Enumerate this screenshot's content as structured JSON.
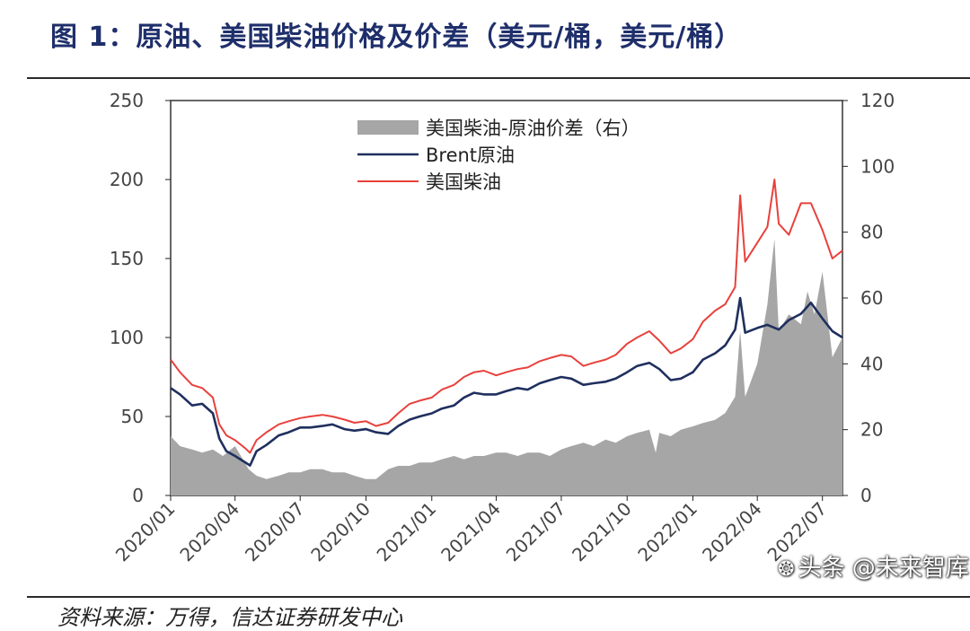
{
  "figure": {
    "title": "图 1：原油、美国柴油价格及价差（美元/桶，美元/桶）",
    "source": "资料来源：万得，信达证券研发中心",
    "watermark": "头条 @未来智库"
  },
  "colors": {
    "spread": "#a6a6a6",
    "brent": "#1f2f5e",
    "diesel": "#e8413c",
    "title": "#1f2f6b",
    "axis": "#222222"
  },
  "chart_data": {
    "type": "line",
    "title": "",
    "xlabel": "",
    "ylabel": "",
    "y2label": "",
    "x_axis": {
      "type": "date",
      "range": [
        "2020-01-02",
        "2022-07-29"
      ],
      "tick_labels": [
        "2020/01",
        "2020/04",
        "2020/07",
        "2020/10",
        "2021/01",
        "2021/04",
        "2021/07",
        "2021/10",
        "2022/01",
        "2022/04",
        "2022/07"
      ]
    },
    "y_left": {
      "range": [
        0,
        250
      ],
      "ticks": [
        0,
        50,
        100,
        150,
        200,
        250
      ]
    },
    "y_right": {
      "range": [
        0,
        120
      ],
      "ticks": [
        0,
        20,
        40,
        60,
        80,
        100,
        120
      ]
    },
    "grid": false,
    "legend_position": "top-center",
    "series": [
      {
        "name": "美国柴油-原油价差（右）",
        "kind": "area",
        "axis": "right",
        "x": [
          "2020-01-02",
          "2020-01-15",
          "2020-02-01",
          "2020-02-15",
          "2020-03-01",
          "2020-03-15",
          "2020-04-01",
          "2020-04-20",
          "2020-05-01",
          "2020-05-15",
          "2020-06-01",
          "2020-06-15",
          "2020-07-01",
          "2020-07-15",
          "2020-08-01",
          "2020-08-15",
          "2020-09-01",
          "2020-09-15",
          "2020-10-01",
          "2020-10-15",
          "2020-11-01",
          "2020-11-15",
          "2020-12-01",
          "2020-12-15",
          "2021-01-01",
          "2021-01-15",
          "2021-02-01",
          "2021-02-15",
          "2021-03-01",
          "2021-03-15",
          "2021-04-01",
          "2021-04-15",
          "2021-05-01",
          "2021-05-15",
          "2021-06-01",
          "2021-06-15",
          "2021-07-01",
          "2021-07-15",
          "2021-08-01",
          "2021-08-15",
          "2021-09-01",
          "2021-09-15",
          "2021-10-01",
          "2021-10-15",
          "2021-11-01",
          "2021-11-10",
          "2021-11-15",
          "2021-12-01",
          "2021-12-15",
          "2022-01-01",
          "2022-01-15",
          "2022-02-01",
          "2022-02-15",
          "2022-03-01",
          "2022-03-08",
          "2022-03-15",
          "2022-04-01",
          "2022-04-15",
          "2022-04-25",
          "2022-05-01",
          "2022-05-15",
          "2022-06-01",
          "2022-06-10",
          "2022-06-20",
          "2022-07-01",
          "2022-07-15",
          "2022-07-29"
        ],
        "values": [
          18,
          15,
          14,
          13,
          14,
          12,
          15,
          8,
          6,
          5,
          6,
          7,
          7,
          8,
          8,
          7,
          7,
          6,
          5,
          5,
          8,
          9,
          9,
          10,
          10,
          11,
          12,
          11,
          12,
          12,
          13,
          13,
          12,
          13,
          13,
          12,
          14,
          15,
          16,
          15,
          17,
          16,
          18,
          19,
          20,
          13,
          19,
          18,
          20,
          21,
          22,
          23,
          25,
          30,
          50,
          30,
          40,
          58,
          78,
          50,
          55,
          52,
          62,
          55,
          68,
          42,
          48
        ]
      },
      {
        "name": "Brent原油",
        "kind": "line",
        "axis": "left",
        "x": [
          "2020-01-02",
          "2020-01-15",
          "2020-02-01",
          "2020-02-15",
          "2020-03-01",
          "2020-03-10",
          "2020-03-20",
          "2020-04-01",
          "2020-04-15",
          "2020-04-22",
          "2020-05-01",
          "2020-05-15",
          "2020-06-01",
          "2020-06-15",
          "2020-07-01",
          "2020-07-15",
          "2020-08-01",
          "2020-08-15",
          "2020-09-01",
          "2020-09-15",
          "2020-10-01",
          "2020-10-15",
          "2020-11-01",
          "2020-11-15",
          "2020-12-01",
          "2020-12-15",
          "2021-01-01",
          "2021-01-15",
          "2021-02-01",
          "2021-02-15",
          "2021-03-01",
          "2021-03-15",
          "2021-04-01",
          "2021-04-15",
          "2021-05-01",
          "2021-05-15",
          "2021-06-01",
          "2021-06-15",
          "2021-07-01",
          "2021-07-15",
          "2021-08-01",
          "2021-08-15",
          "2021-09-01",
          "2021-09-15",
          "2021-10-01",
          "2021-10-15",
          "2021-11-01",
          "2021-11-15",
          "2021-12-01",
          "2021-12-15",
          "2022-01-01",
          "2022-01-15",
          "2022-02-01",
          "2022-02-15",
          "2022-03-01",
          "2022-03-08",
          "2022-03-15",
          "2022-04-01",
          "2022-04-15",
          "2022-05-01",
          "2022-05-15",
          "2022-06-01",
          "2022-06-15",
          "2022-07-01",
          "2022-07-15",
          "2022-07-29"
        ],
        "values": [
          68,
          64,
          57,
          58,
          52,
          36,
          28,
          25,
          21,
          19,
          28,
          32,
          38,
          40,
          43,
          43,
          44,
          45,
          42,
          41,
          42,
          40,
          39,
          44,
          48,
          50,
          52,
          55,
          57,
          62,
          65,
          64,
          64,
          66,
          68,
          67,
          71,
          73,
          75,
          74,
          70,
          71,
          72,
          74,
          78,
          82,
          84,
          80,
          73,
          74,
          78,
          86,
          90,
          95,
          105,
          125,
          103,
          106,
          108,
          105,
          111,
          115,
          122,
          112,
          104,
          100
        ]
      },
      {
        "name": "美国柴油",
        "kind": "line",
        "axis": "left",
        "x": [
          "2020-01-02",
          "2020-01-15",
          "2020-02-01",
          "2020-02-15",
          "2020-03-01",
          "2020-03-10",
          "2020-03-20",
          "2020-04-01",
          "2020-04-15",
          "2020-04-22",
          "2020-05-01",
          "2020-05-15",
          "2020-06-01",
          "2020-06-15",
          "2020-07-01",
          "2020-07-15",
          "2020-08-01",
          "2020-08-15",
          "2020-09-01",
          "2020-09-15",
          "2020-10-01",
          "2020-10-15",
          "2020-11-01",
          "2020-11-15",
          "2020-12-01",
          "2020-12-15",
          "2021-01-01",
          "2021-01-15",
          "2021-02-01",
          "2021-02-15",
          "2021-03-01",
          "2021-03-15",
          "2021-04-01",
          "2021-04-15",
          "2021-05-01",
          "2021-05-15",
          "2021-06-01",
          "2021-06-15",
          "2021-07-01",
          "2021-07-15",
          "2021-08-01",
          "2021-08-15",
          "2021-09-01",
          "2021-09-15",
          "2021-10-01",
          "2021-10-15",
          "2021-11-01",
          "2021-11-15",
          "2021-12-01",
          "2021-12-15",
          "2022-01-01",
          "2022-01-15",
          "2022-02-01",
          "2022-02-15",
          "2022-03-01",
          "2022-03-08",
          "2022-03-15",
          "2022-04-01",
          "2022-04-15",
          "2022-04-25",
          "2022-05-01",
          "2022-05-15",
          "2022-06-01",
          "2022-06-15",
          "2022-07-01",
          "2022-07-15",
          "2022-07-29"
        ],
        "values": [
          86,
          78,
          70,
          68,
          62,
          45,
          38,
          35,
          30,
          27,
          35,
          40,
          45,
          47,
          49,
          50,
          51,
          50,
          48,
          46,
          47,
          44,
          46,
          52,
          58,
          60,
          62,
          67,
          70,
          75,
          78,
          79,
          76,
          78,
          80,
          81,
          85,
          87,
          89,
          88,
          82,
          84,
          86,
          89,
          96,
          100,
          104,
          98,
          90,
          93,
          99,
          110,
          117,
          121,
          132,
          190,
          148,
          160,
          170,
          200,
          172,
          165,
          185,
          185,
          168,
          150,
          155
        ]
      }
    ]
  }
}
